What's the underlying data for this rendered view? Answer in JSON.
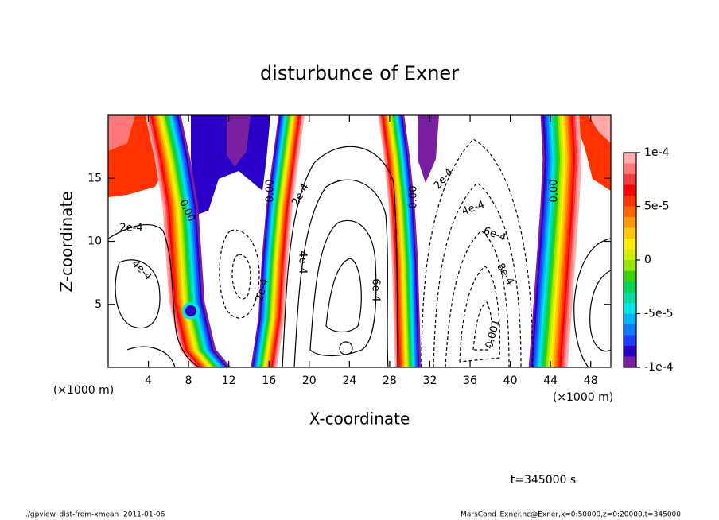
{
  "chart_data": {
    "type": "contour",
    "title": "disturbunce of Exner",
    "x_label": "X-coordinate",
    "y_label": "Z-coordinate",
    "x_unit": "(×1000 m)",
    "y_unit": "(×1000 m)",
    "xlim": [
      0,
      50
    ],
    "ylim": [
      0,
      20
    ],
    "xticks": [
      4,
      8,
      12,
      16,
      20,
      24,
      28,
      32,
      36,
      40,
      44,
      48
    ],
    "yticks": [
      5,
      10,
      15
    ],
    "colorbar": {
      "clim": [
        -0.0001,
        0.0001
      ],
      "levels": [
        -0.0001,
        -9e-05,
        -8e-05,
        -7e-05,
        -6e-05,
        -5e-05,
        -4e-05,
        -3e-05,
        -2e-05,
        -1e-05,
        0,
        1e-05,
        2e-05,
        3e-05,
        4e-05,
        5e-05,
        6e-05,
        7e-05,
        8e-05,
        9e-05,
        0.0001
      ],
      "colors": [
        "#7a1fa2",
        "#2a00c8",
        "#1e3cff",
        "#0a78ff",
        "#00b4ff",
        "#00e6e6",
        "#00dca0",
        "#00d25a",
        "#3cd200",
        "#96e600",
        "#d2f000",
        "#ffee00",
        "#ffc800",
        "#ff9600",
        "#ff6400",
        "#ff3200",
        "#ff0000",
        "#f03c3c",
        "#ff7878",
        "#ffa8a8"
      ],
      "ticks": [
        {
          "value": 0.0001,
          "label": "1e-4"
        },
        {
          "value": 5e-05,
          "label": "5e-5"
        },
        0,
        {
          "value": -5e-05,
          "label": "-5e-5"
        },
        {
          "value": -0.0001,
          "label": "-1e-4"
        }
      ]
    },
    "contour_labels": [
      "2e-4",
      "4e-4",
      "0.00",
      "0.00",
      "2e-4",
      "4e-4",
      "2e-4",
      "6e-4",
      "0.00",
      "2e-4",
      "4e-4",
      "6e-4",
      "8e-4",
      "0.001",
      "0.00"
    ],
    "time_label": "t=345000 s",
    "footer_left": "./gpview_dist-from-xmean  2011-01-06",
    "footer_right": "MarsCond_Exner.nc@Exner,x=0:50000,z=0:20000,t=345000"
  }
}
